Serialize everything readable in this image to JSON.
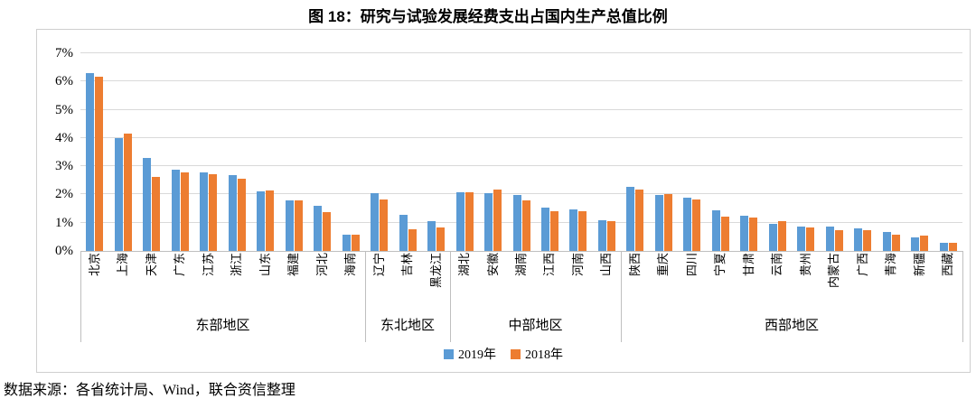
{
  "title": "图 18：研究与试验发展经费支出占国内生产总值比例",
  "source": "数据来源：各省统计局、Wind，联合资信整理",
  "colors": {
    "series_2019": "#5B9BD5",
    "series_2018": "#ED7D31",
    "gridline": "#d9d9d9",
    "axis": "#bfbfbf",
    "border": "#cfcfcf"
  },
  "chart_data": {
    "type": "bar",
    "title": "图 18：研究与试验发展经费支出占国内生产总值比例",
    "xlabel": "",
    "ylabel": "",
    "unit": "%",
    "grid": true,
    "legend_position": "bottom",
    "y_axis": {
      "min": 0,
      "max": 7,
      "step": 1,
      "tick_labels": [
        "0%",
        "1%",
        "2%",
        "3%",
        "4%",
        "5%",
        "6%",
        "7%"
      ]
    },
    "regions": [
      {
        "label": "东部地区",
        "categories": [
          "北京",
          "上海",
          "天津",
          "广东",
          "江苏",
          "浙江",
          "山东",
          "福建",
          "河北",
          "海南"
        ]
      },
      {
        "label": "东北地区",
        "categories": [
          "辽宁",
          "吉林",
          "黑龙江"
        ]
      },
      {
        "label": "中部地区",
        "categories": [
          "湖北",
          "安徽",
          "湖南",
          "江西",
          "河南",
          "山西"
        ]
      },
      {
        "label": "西部地区",
        "categories": [
          "陕西",
          "重庆",
          "四川",
          "宁夏",
          "甘肃",
          "云南",
          "贵州",
          "内蒙古",
          "广西",
          "青海",
          "新疆",
          "西藏"
        ]
      }
    ],
    "categories": [
      "北京",
      "上海",
      "天津",
      "广东",
      "江苏",
      "浙江",
      "山东",
      "福建",
      "河北",
      "海南",
      "辽宁",
      "吉林",
      "黑龙江",
      "湖北",
      "安徽",
      "湖南",
      "江西",
      "河南",
      "山西",
      "陕西",
      "重庆",
      "四川",
      "宁夏",
      "甘肃",
      "云南",
      "贵州",
      "内蒙古",
      "广西",
      "青海",
      "新疆",
      "西藏"
    ],
    "series": [
      {
        "name": "2019年",
        "color": "#5B9BD5",
        "values": [
          6.31,
          4.0,
          3.28,
          2.88,
          2.79,
          2.68,
          2.1,
          1.78,
          1.61,
          0.56,
          2.04,
          1.27,
          1.07,
          2.09,
          2.03,
          1.98,
          1.55,
          1.46,
          1.1,
          2.27,
          1.99,
          1.87,
          1.45,
          1.25,
          0.95,
          0.86,
          0.86,
          0.79,
          0.68,
          0.47,
          0.29
        ]
      },
      {
        "name": "2018年",
        "color": "#ED7D31",
        "values": [
          6.17,
          4.16,
          2.62,
          2.78,
          2.72,
          2.57,
          2.15,
          1.8,
          1.39,
          0.56,
          1.83,
          0.77,
          0.83,
          2.09,
          2.16,
          1.79,
          1.41,
          1.4,
          1.05,
          2.18,
          2.01,
          1.81,
          1.23,
          1.18,
          1.05,
          0.82,
          0.75,
          0.72,
          0.58,
          0.53,
          0.28
        ]
      }
    ]
  }
}
